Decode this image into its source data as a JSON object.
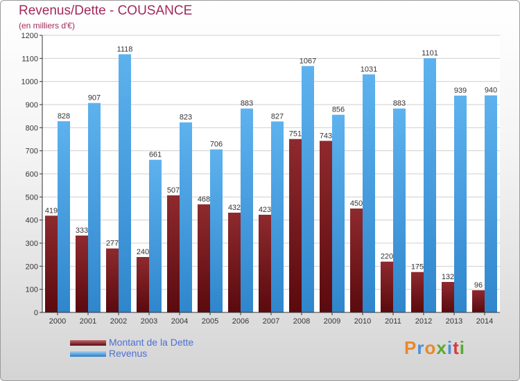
{
  "header": {
    "title": "Revenus/Dette - COUSANCE",
    "subtitle": "(en milliers d'€)"
  },
  "colors": {
    "debt": "#7a1c20",
    "revenue": "#3f9be0",
    "grid": "#c8c8c8",
    "title": "#a3285a",
    "legend_text": "#4b6fd6"
  },
  "chart_data": {
    "type": "bar",
    "categories": [
      "2000",
      "2001",
      "2002",
      "2003",
      "2004",
      "2005",
      "2006",
      "2007",
      "2008",
      "2009",
      "2010",
      "2011",
      "2012",
      "2013",
      "2014"
    ],
    "series": [
      {
        "name": "Montant de la Dette",
        "values": [
          419,
          333,
          277,
          240,
          507,
          468,
          432,
          423,
          751,
          743,
          450,
          220,
          175,
          132,
          96
        ]
      },
      {
        "name": "Revenus",
        "values": [
          828,
          907,
          1118,
          661,
          823,
          706,
          883,
          827,
          1067,
          856,
          1031,
          883,
          1101,
          939,
          940
        ]
      }
    ],
    "yticks": [
      0,
      100,
      200,
      300,
      400,
      500,
      600,
      700,
      800,
      900,
      1000,
      1100,
      1200
    ],
    "ylim": [
      0,
      1200
    ],
    "grid": true,
    "legend_position": "bottom-left"
  },
  "legend": {
    "debt_label": "Montant de la Dette",
    "revenue_label": "Revenus"
  },
  "logo": {
    "letters": [
      "P",
      "r",
      "o",
      "x",
      "i",
      "t",
      "i"
    ],
    "colors": [
      "#e8892a",
      "#4a90d9",
      "#e8892a",
      "#5aa832",
      "#4a90d9",
      "#d93a3a",
      "#5aa832"
    ]
  }
}
